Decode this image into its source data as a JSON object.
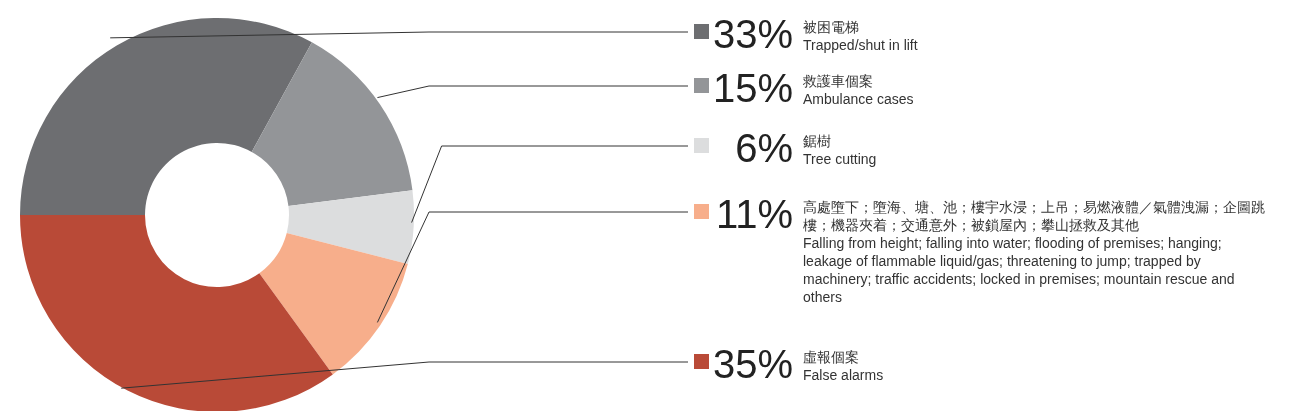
{
  "chart_data": {
    "type": "donut",
    "categories": [
      "被困電梯\nTrapped/shut in lift",
      "救護車個案\nAmbulance cases",
      "鋸樹\nTree cutting",
      "高處墮下；墮海、塘、池；樓宇水浸；上吊；易燃液體／氣體洩漏；企圖跳樓；機器夾着；交通意外；被鎖屋內；攀山拯救及其他\nFalling from height; falling into water; flooding of premises; hanging; leakage of flammable liquid/gas; threatening to jump; trapped by machinery; traffic accidents; locked in premises; mountain rescue and others",
      "虛報個案\nFalse alarms"
    ],
    "values": [
      33,
      15,
      6,
      11,
      35
    ],
    "value_labels": [
      "33%",
      "15%",
      "6%",
      "11%",
      "35%"
    ],
    "colors": [
      "#6d6e71",
      "#939598",
      "#dcddde",
      "#f7ae8b",
      "#b94a37"
    ]
  }
}
